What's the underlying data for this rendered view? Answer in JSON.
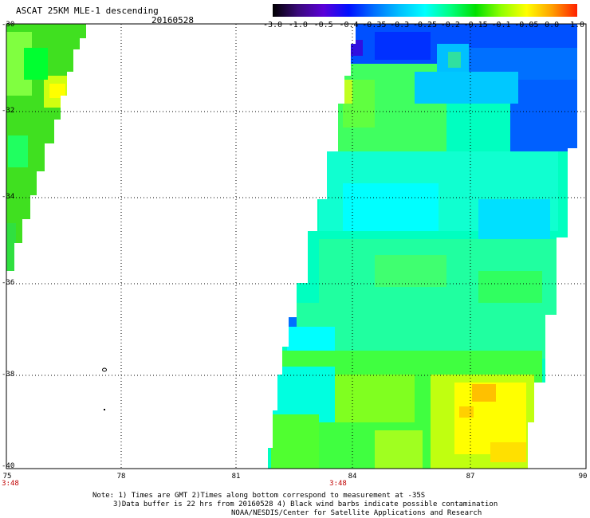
{
  "header": {
    "title": "ASCAT 25KM MLE-1 descending",
    "date": "20160528"
  },
  "colorbar": {
    "labels": [
      "-3.0",
      "-1.0",
      "-0.5",
      "-0.4",
      "-0.35",
      "-0.3",
      "-0.25",
      "-0.2",
      "-0.15",
      "-0.1",
      "-0.05",
      "0.0",
      "1.0"
    ],
    "colors": [
      "#000000",
      "#3a0a7a",
      "#5a00d8",
      "#0010ff",
      "#0070ff",
      "#00c0ff",
      "#00ffff",
      "#00ff80",
      "#00e000",
      "#90ff00",
      "#ffff00",
      "#ffa000",
      "#ff2000"
    ]
  },
  "axes": {
    "lat_labels": [
      "-30",
      "-32",
      "-34",
      "-36",
      "-38",
      "-40"
    ],
    "lon_labels": [
      "75",
      "78",
      "81",
      "84",
      "87",
      "90"
    ],
    "time_labels": [
      "3:48",
      "3:48"
    ]
  },
  "notes": {
    "line1": "Note: 1) Times are GMT 2)Times along bottom correspond to measurement at -35S",
    "line2": "3)Data buffer is 22 hrs from 20160528 4) Black wind barbs indicate possible contamination",
    "line3": "NOAA/NESDIS/Center for Satellite Applications and Research"
  }
}
